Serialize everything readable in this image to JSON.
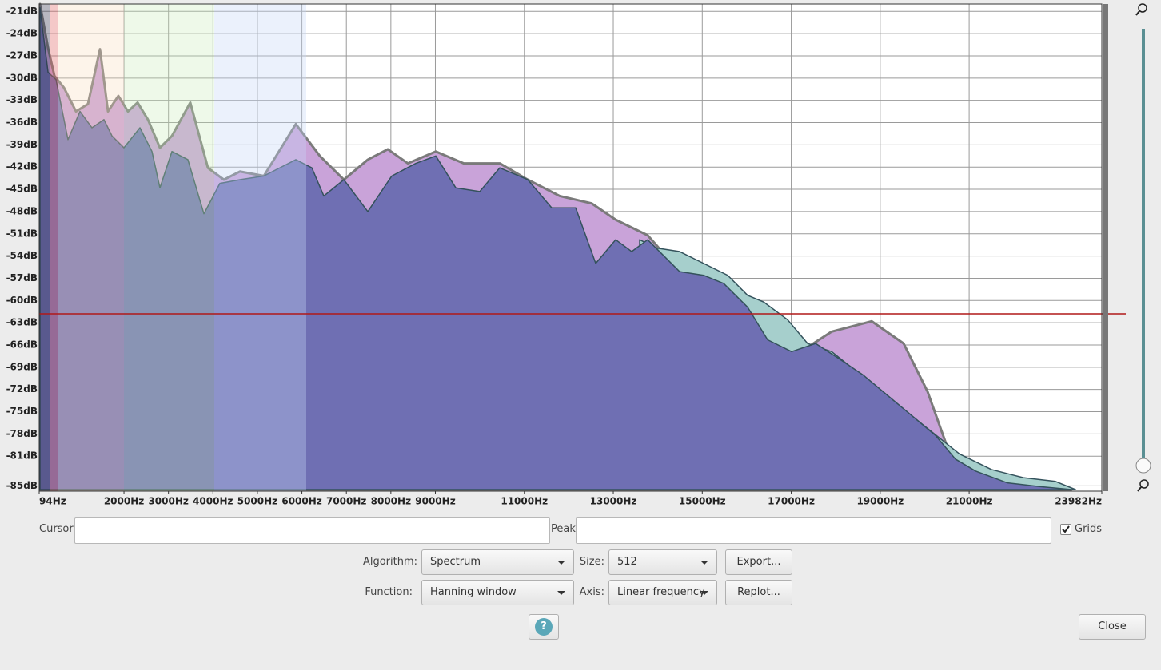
{
  "chart_data": {
    "type": "area",
    "xlim": [
      94,
      23982
    ],
    "ylim": [
      -20,
      -85.5
    ],
    "grid": true,
    "xticks": [
      {
        "value": 94,
        "label": "94Hz"
      },
      {
        "value": 2000,
        "label": "2000Hz"
      },
      {
        "value": 3000,
        "label": "3000Hz"
      },
      {
        "value": 4000,
        "label": "4000Hz"
      },
      {
        "value": 5000,
        "label": "5000Hz"
      },
      {
        "value": 6000,
        "label": "6000Hz"
      },
      {
        "value": 7000,
        "label": "7000Hz"
      },
      {
        "value": 8000,
        "label": "8000Hz"
      },
      {
        "value": 9000,
        "label": "9000Hz"
      },
      {
        "value": 11000,
        "label": "11000Hz"
      },
      {
        "value": 13000,
        "label": "13000Hz"
      },
      {
        "value": 15000,
        "label": "15000Hz"
      },
      {
        "value": 17000,
        "label": "17000Hz"
      },
      {
        "value": 19000,
        "label": "19000Hz"
      },
      {
        "value": 21000,
        "label": "21000Hz"
      },
      {
        "value": 23982,
        "label": "23982Hz"
      }
    ],
    "yticks": [
      {
        "value": -21,
        "label": "-21dB"
      },
      {
        "value": -24,
        "label": "-24dB"
      },
      {
        "value": -27,
        "label": "-27dB"
      },
      {
        "value": -30,
        "label": "-30dB"
      },
      {
        "value": -33,
        "label": "-33dB"
      },
      {
        "value": -36,
        "label": "-36dB"
      },
      {
        "value": -39,
        "label": "-39dB"
      },
      {
        "value": -42,
        "label": "-42dB"
      },
      {
        "value": -45,
        "label": "-45dB"
      },
      {
        "value": -48,
        "label": "-48dB"
      },
      {
        "value": -51,
        "label": "-51dB"
      },
      {
        "value": -54,
        "label": "-54dB"
      },
      {
        "value": -57,
        "label": "-57dB"
      },
      {
        "value": -60,
        "label": "-60dB"
      },
      {
        "value": -63,
        "label": "-63dB"
      },
      {
        "value": -66,
        "label": "-66dB"
      },
      {
        "value": -69,
        "label": "-69dB"
      },
      {
        "value": -72,
        "label": "-72dB"
      },
      {
        "value": -75,
        "label": "-75dB"
      },
      {
        "value": -78,
        "label": "-78dB"
      },
      {
        "value": -81,
        "label": "-81dB"
      },
      {
        "value": -85,
        "label": "-85dB"
      }
    ],
    "series": [
      {
        "color": "#c9a3d9",
        "x": [
          112,
          292,
          436,
          651,
          921,
          1190,
          1460,
          1640,
          1874,
          2089,
          2305,
          2539,
          2808,
          3078,
          3491,
          3887,
          4246,
          4606,
          5145,
          5864,
          6403,
          6943,
          7482,
          7931,
          8381,
          9010,
          9639,
          10448,
          11077,
          11796,
          12515,
          13054,
          13773,
          14492,
          15031,
          15571,
          16020,
          16380,
          16919,
          17368,
          17908,
          18807,
          19526,
          20065,
          20604,
          21143,
          21862,
          22581,
          23300
        ],
        "values": [
          -20,
          -25.9,
          -29.7,
          -31.3,
          -34.5,
          -33.5,
          -26.1,
          -34.5,
          -32.4,
          -34.5,
          -33.3,
          -35.6,
          -39.4,
          -37.8,
          -33.3,
          -42.1,
          -43.7,
          -42.6,
          -43.2,
          -36.2,
          -40.5,
          -43.7,
          -41,
          -39.6,
          -41.5,
          -39.9,
          -41.5,
          -41.5,
          -43.7,
          -45.9,
          -46.9,
          -49.1,
          -51.2,
          -56.1,
          -56.6,
          -57.7,
          -60.9,
          -64.2,
          -65.8,
          -66.3,
          -64.2,
          -62.8,
          -65.8,
          -72.3,
          -81.4,
          -83.6,
          -84.6,
          -85.1,
          -85.5
        ]
      },
      {
        "color": "#a6cfcc",
        "x": [
          13593,
          13953,
          14492,
          15031,
          15571,
          16020,
          16380,
          16919,
          17368,
          17908,
          20783,
          21502,
          22221,
          22940,
          23390
        ],
        "values": [
          -51.8,
          -52.9,
          -53.4,
          -55,
          -56.6,
          -59.3,
          -60.2,
          -62.6,
          -65.8,
          -66.9,
          -80.7,
          -82.8,
          -83.9,
          -84.4,
          -85.5
        ]
      },
      {
        "color": "#6f6fb3",
        "x": [
          112,
          292,
          472,
          741,
          1011,
          1280,
          1550,
          1730,
          1999,
          2359,
          2629,
          2808,
          3078,
          3437,
          3797,
          4156,
          4606,
          5145,
          5505,
          5864,
          6224,
          6493,
          6943,
          7482,
          8021,
          8561,
          9010,
          9459,
          9998,
          10448,
          11077,
          11616,
          12155,
          12605,
          13054,
          13414,
          13773,
          14492,
          15031,
          15481,
          16020,
          16469,
          17008,
          17547,
          18087,
          18626,
          19165,
          19705,
          20244,
          20693,
          21143,
          21862,
          22581,
          23300
        ],
        "values": [
          -20.5,
          -29.2,
          -30.2,
          -38.3,
          -34.5,
          -36.7,
          -35.6,
          -37.8,
          -39.4,
          -36.7,
          -39.9,
          -44.8,
          -39.9,
          -41,
          -48.3,
          -44.2,
          -43.7,
          -43.2,
          -42.1,
          -41,
          -42.1,
          -45.9,
          -43.7,
          -48,
          -43.2,
          -41.5,
          -40.5,
          -44.8,
          -45.3,
          -42.1,
          -43.7,
          -47.5,
          -47.5,
          -55,
          -51.8,
          -53.4,
          -51.8,
          -56.1,
          -56.6,
          -57.7,
          -60.9,
          -65.3,
          -66.9,
          -65.8,
          -67.9,
          -70.1,
          -72.8,
          -75.5,
          -78.2,
          -81.4,
          -83,
          -84.6,
          -85.1,
          -85.5
        ]
      }
    ]
  },
  "controls": {
    "cursor_label": "Cursor:",
    "peak_label": "Peak:",
    "grids_label": "Grids",
    "grids_checked": true,
    "algorithm_label": "Algorithm:",
    "algorithm": "Spectrum",
    "size_label": "Size:",
    "size": 512,
    "export": "Export...",
    "function_label": "Function:",
    "function": "Hanning window",
    "axis_label": "Axis:",
    "axis": "Linear frequency",
    "replot": "Replot...",
    "help": "?",
    "close": "Close"
  }
}
